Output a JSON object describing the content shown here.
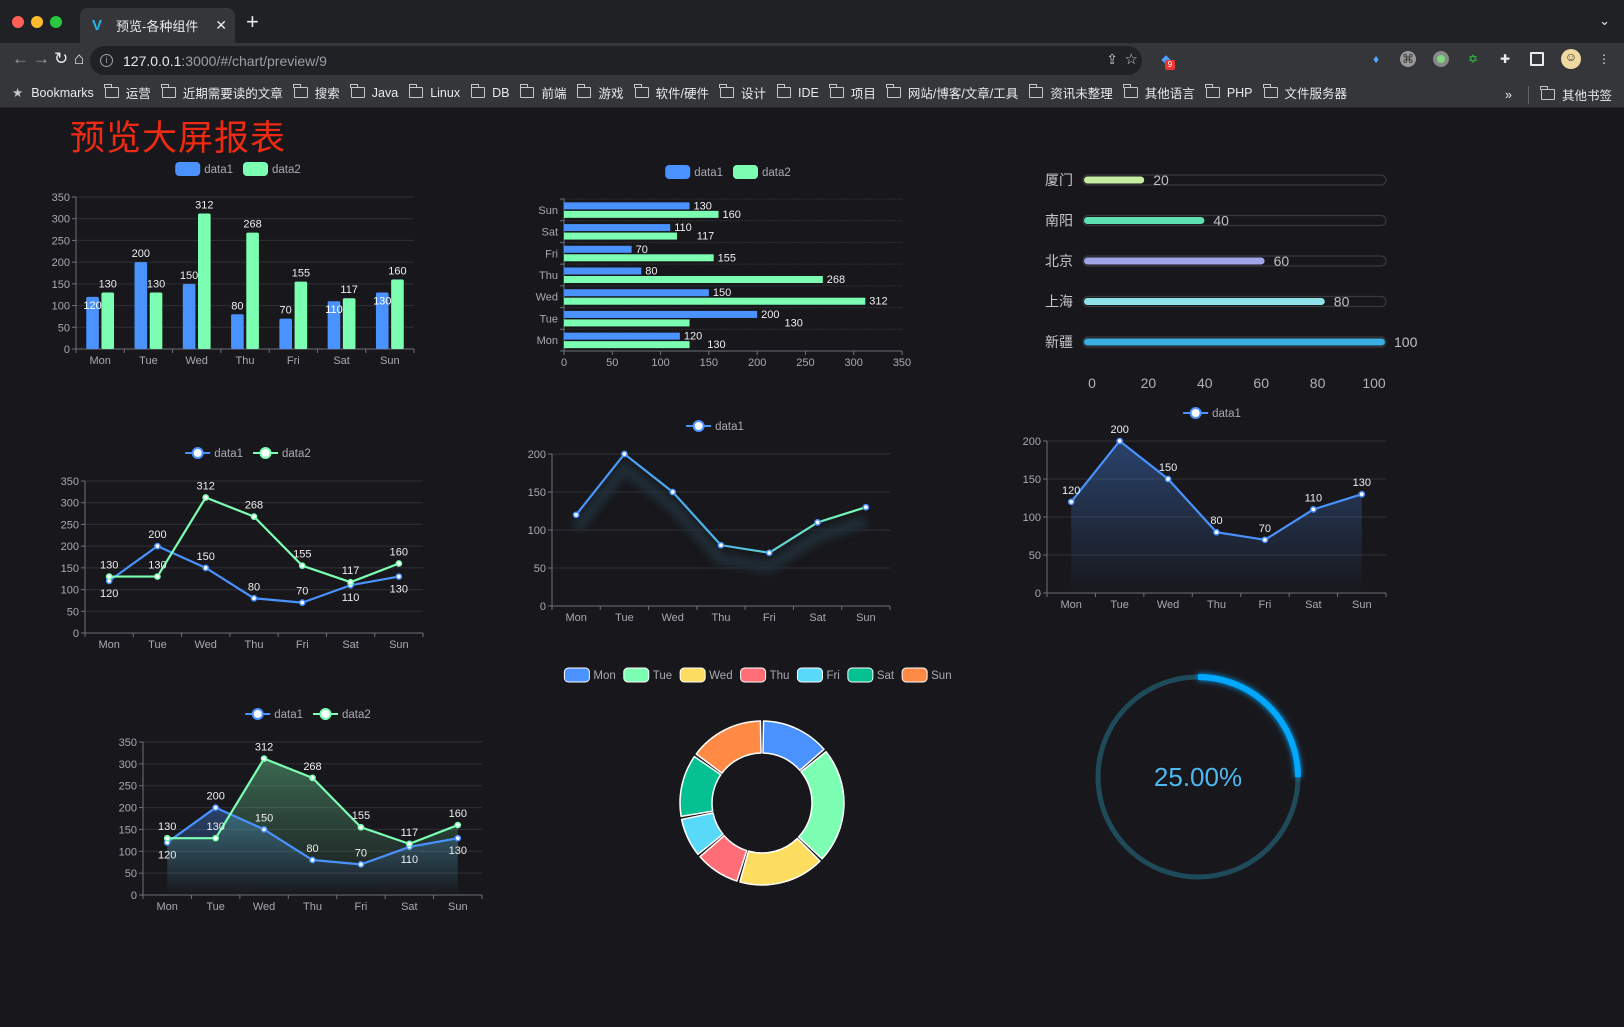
{
  "browser": {
    "tab_title": "预览-各种组件",
    "url_host": "127.0.0.1",
    "url_rest": ":3000/#/chart/preview/9",
    "extension_badge": "9",
    "bookmarks_label": "Bookmarks",
    "bookmarks": [
      "运营",
      "近期需要读的文章",
      "搜索",
      "Java",
      "Linux",
      "DB",
      "前端",
      "游戏",
      "软件/硬件",
      "设计",
      "IDE",
      "项目",
      "网站/博客/文章/工具",
      "资讯未整理",
      "其他语言",
      "PHP",
      "文件服务器"
    ],
    "overflow": "»",
    "other_bookmarks": "其他书签"
  },
  "page": {
    "title": "预览大屏报表",
    "title_color": "#ee2a12"
  },
  "colors": {
    "data1": "#4992ff",
    "data2": "#7cffb2",
    "pie": [
      "#4992ff",
      "#7cffb2",
      "#fddd60",
      "#ff6e76",
      "#58d9f9",
      "#05c091",
      "#ff8a45"
    ],
    "gauge": "#00a8ff"
  },
  "chart_data": [
    {
      "type": "bar",
      "legend": [
        "data1",
        "data2"
      ],
      "categories": [
        "Mon",
        "Tue",
        "Wed",
        "Thu",
        "Fri",
        "Sat",
        "Sun"
      ],
      "series": [
        {
          "name": "data1",
          "values": [
            120,
            200,
            150,
            80,
            70,
            110,
            130
          ]
        },
        {
          "name": "data2",
          "values": [
            130,
            130,
            312,
            268,
            155,
            117,
            160
          ]
        }
      ],
      "ylim": [
        0,
        350
      ],
      "yticks": [
        0,
        50,
        100,
        150,
        200,
        250,
        300,
        350
      ],
      "data_labels": true,
      "grid": true
    },
    {
      "type": "bar",
      "orientation": "horizontal",
      "legend": [
        "data1",
        "data2"
      ],
      "categories": [
        "Mon",
        "Tue",
        "Wed",
        "Thu",
        "Fri",
        "Sat",
        "Sun"
      ],
      "series": [
        {
          "name": "data1",
          "values": [
            120,
            200,
            150,
            80,
            70,
            110,
            130
          ]
        },
        {
          "name": "data2",
          "values": [
            130,
            130,
            312,
            268,
            155,
            117,
            160
          ]
        }
      ],
      "xlim": [
        0,
        350
      ],
      "xticks": [
        0,
        50,
        100,
        150,
        200,
        250,
        300,
        350
      ],
      "data_labels": true
    },
    {
      "type": "bar",
      "orientation": "horizontal",
      "style": "progress",
      "categories": [
        "厦门",
        "南阳",
        "北京",
        "上海",
        "新疆"
      ],
      "values": [
        20,
        40,
        60,
        80,
        100
      ],
      "colors": [
        "#c5eda0",
        "#5ee0b0",
        "#9fa5e6",
        "#8ee3ea",
        "#3ab0e2"
      ],
      "xlim": [
        0,
        100
      ],
      "xticks": [
        0,
        20,
        40,
        60,
        80,
        100
      ],
      "data_labels": true
    },
    {
      "type": "line",
      "legend": [
        "data1",
        "data2"
      ],
      "categories": [
        "Mon",
        "Tue",
        "Wed",
        "Thu",
        "Fri",
        "Sat",
        "Sun"
      ],
      "series": [
        {
          "name": "data1",
          "values": [
            120,
            200,
            150,
            80,
            70,
            110,
            130
          ]
        },
        {
          "name": "data2",
          "values": [
            130,
            130,
            312,
            268,
            155,
            117,
            160
          ]
        }
      ],
      "ylim": [
        0,
        350
      ],
      "yticks": [
        0,
        50,
        100,
        150,
        200,
        250,
        300,
        350
      ],
      "data_labels": true,
      "grid": true
    },
    {
      "type": "line",
      "legend": [
        "data1"
      ],
      "categories": [
        "Mon",
        "Tue",
        "Wed",
        "Thu",
        "Fri",
        "Sat",
        "Sun"
      ],
      "series": [
        {
          "name": "data1",
          "values": [
            120,
            200,
            150,
            80,
            70,
            110,
            130
          ]
        }
      ],
      "ylim": [
        0,
        200
      ],
      "yticks": [
        0,
        50,
        100,
        150,
        200
      ],
      "data_labels": false,
      "grid": true,
      "gradient_line": [
        "#4992ff",
        "#7cffb2"
      ]
    },
    {
      "type": "area",
      "legend": [
        "data1"
      ],
      "categories": [
        "Mon",
        "Tue",
        "Wed",
        "Thu",
        "Fri",
        "Sat",
        "Sun"
      ],
      "series": [
        {
          "name": "data1",
          "values": [
            120,
            200,
            150,
            80,
            70,
            110,
            130
          ]
        }
      ],
      "ylim": [
        0,
        200
      ],
      "yticks": [
        0,
        50,
        100,
        150,
        200
      ],
      "data_labels": true,
      "grid": true
    },
    {
      "type": "area",
      "legend": [
        "data1",
        "data2"
      ],
      "categories": [
        "Mon",
        "Tue",
        "Wed",
        "Thu",
        "Fri",
        "Sat",
        "Sun"
      ],
      "series": [
        {
          "name": "data1",
          "values": [
            120,
            200,
            150,
            80,
            70,
            110,
            130
          ]
        },
        {
          "name": "data2",
          "values": [
            130,
            130,
            312,
            268,
            155,
            117,
            160
          ]
        }
      ],
      "ylim": [
        0,
        350
      ],
      "yticks": [
        0,
        50,
        100,
        150,
        200,
        250,
        300,
        350
      ],
      "data_labels": true,
      "grid": true
    },
    {
      "type": "pie",
      "donut": true,
      "legend": [
        "Mon",
        "Tue",
        "Wed",
        "Thu",
        "Fri",
        "Sat",
        "Sun"
      ],
      "categories": [
        "Mon",
        "Tue",
        "Wed",
        "Thu",
        "Fri",
        "Sat",
        "Sun"
      ],
      "values": [
        120,
        200,
        150,
        80,
        70,
        110,
        130
      ]
    },
    {
      "type": "gauge",
      "value": 25,
      "max": 100,
      "label": "25.00%"
    }
  ]
}
